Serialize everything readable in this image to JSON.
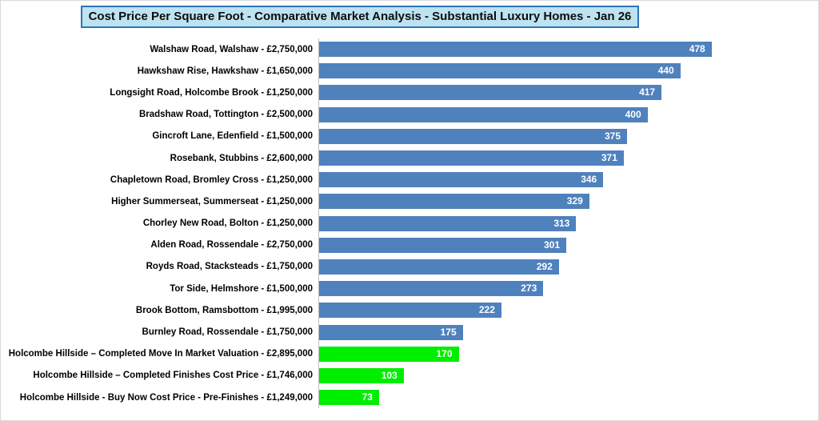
{
  "colors": {
    "bar_default": "#4f81bd",
    "bar_highlight": "#00ee00",
    "title_fill": "#bde3f1",
    "title_border": "#2e74b5",
    "axis_line": "#bfbfbf",
    "value_text": "#ffffff",
    "label_text": "#000000"
  },
  "chart_data": {
    "type": "bar",
    "orientation": "horizontal",
    "title": "Cost Price Per Square Foot - Comparative Market Analysis - Substantial Luxury Homes - Jan 26",
    "categories": [
      "Walshaw Road, Walshaw - £2,750,000",
      "Hawkshaw Rise, Hawkshaw - £1,650,000",
      "Longsight Road, Holcombe Brook - £1,250,000",
      "Bradshaw Road, Tottington - £2,500,000",
      "Gincroft Lane, Edenfield - £1,500,000",
      "Rosebank, Stubbins - £2,600,000",
      "Chapletown Road, Bromley Cross - £1,250,000",
      "Higher Summerseat, Summerseat - £1,250,000",
      "Chorley New Road, Bolton - £1,250,000",
      "Alden Road, Rossendale - £2,750,000",
      "Royds Road, Stacksteads - £1,750,000",
      "Tor Side, Helmshore - £1,500,000",
      "Brook Bottom, Ramsbottom - £1,995,000",
      "Burnley Road, Rossendale - £1,750,000",
      "Holcombe Hillside – Completed Move In Market Valuation - £2,895,000",
      "Holcombe Hillside – Completed Finishes Cost Price - £1,746,000",
      "Holcombe Hillside - Buy Now Cost Price - Pre-Finishes - £1,249,000"
    ],
    "values": [
      478,
      440,
      417,
      400,
      375,
      371,
      346,
      329,
      313,
      301,
      292,
      273,
      222,
      175,
      170,
      103,
      73
    ],
    "highlighted": [
      false,
      false,
      false,
      false,
      false,
      false,
      false,
      false,
      false,
      false,
      false,
      false,
      false,
      false,
      true,
      true,
      true
    ],
    "xlim": [
      0,
      600
    ],
    "value_labels": "inside-end",
    "grid": false,
    "legend": false
  }
}
